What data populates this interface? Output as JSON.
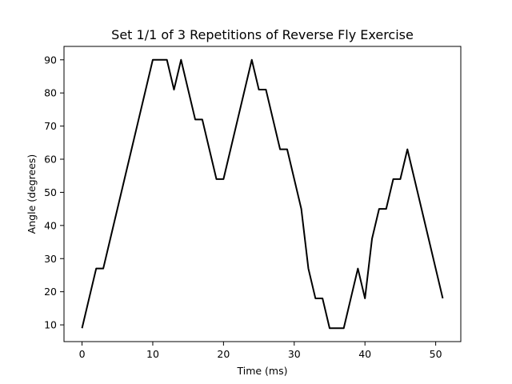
{
  "chart_data": {
    "type": "line",
    "title": "Set 1/1 of 3 Repetitions of Reverse Fly Exercise",
    "xlabel": "Time (ms)",
    "ylabel": "Angle (degrees)",
    "xlim": [
      -2.55,
      53.55
    ],
    "ylim": [
      4.95,
      94.05
    ],
    "xticks": [
      0,
      10,
      20,
      30,
      40,
      50
    ],
    "yticks": [
      10,
      20,
      30,
      40,
      50,
      60,
      70,
      80,
      90
    ],
    "grid": false,
    "series": [
      {
        "color": "#000000",
        "x": [
          0,
          1,
          2,
          3,
          4,
          5,
          6,
          7,
          8,
          9,
          10,
          11,
          12,
          13,
          14,
          15,
          16,
          17,
          18,
          19,
          20,
          21,
          22,
          23,
          24,
          25,
          26,
          27,
          28,
          29,
          30,
          31,
          32,
          33,
          34,
          35,
          36,
          37,
          38,
          39,
          40,
          41,
          42,
          43,
          44,
          45,
          46,
          47,
          48,
          49,
          50,
          51
        ],
        "y": [
          9,
          18,
          27,
          27,
          36,
          45,
          54,
          63,
          72,
          81,
          90,
          90,
          90,
          81,
          90,
          81,
          72,
          72,
          63,
          54,
          54,
          63,
          72,
          81,
          90,
          81,
          81,
          72,
          63,
          63,
          54,
          45,
          27,
          18,
          18,
          9,
          9,
          9,
          18,
          27,
          18,
          36,
          45,
          45,
          54,
          54,
          63,
          54,
          45,
          36,
          27,
          18
        ]
      }
    ]
  }
}
